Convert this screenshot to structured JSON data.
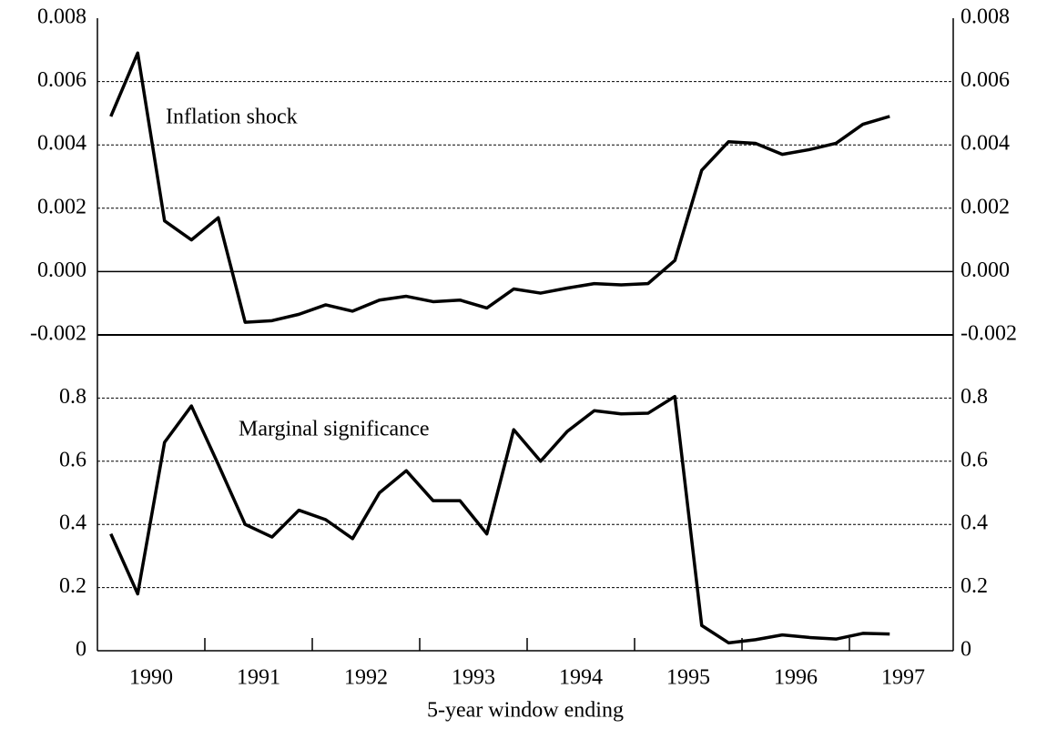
{
  "chart_data": [
    {
      "type": "line",
      "annotation": "Inflation shock",
      "ylim": [
        -0.002,
        0.008
      ],
      "yticks": [
        -0.002,
        {
          "value": 0,
          "label": "0.000"
        },
        0.002,
        0.004,
        0.006,
        0.008
      ],
      "series": [
        {
          "color": "#000000",
          "values": [
            0.0049,
            0.0069,
            0.0016,
            0.001,
            0.0017,
            -0.0016,
            -0.00155,
            -0.00135,
            -0.00105,
            -0.00125,
            -0.0009,
            -0.00078,
            -0.00095,
            -0.0009,
            -0.00115,
            -0.00055,
            -0.00068,
            -0.00052,
            -0.00038,
            -0.00042,
            -0.00038,
            0.00035,
            0.0032,
            0.0041,
            0.00405,
            0.0037,
            0.00385,
            0.00405,
            0.00465,
            0.0049
          ]
        }
      ]
    },
    {
      "type": "line",
      "annotation": "Marginal significance",
      "x_label": "5-year window ending",
      "categories": [
        "1990",
        null,
        null,
        null,
        "1991",
        null,
        null,
        null,
        "1992",
        null,
        null,
        null,
        "1993",
        null,
        null,
        null,
        "1994",
        null,
        null,
        null,
        "1995",
        null,
        null,
        null,
        "1996",
        null,
        null,
        null,
        "1997",
        null
      ],
      "ylim": [
        0,
        1
      ],
      "yticks": [
        0,
        0.2,
        0.4,
        0.6,
        0.8
      ],
      "series": [
        {
          "color": "#000000",
          "values": [
            0.37,
            0.18,
            0.66,
            0.775,
            0.59,
            0.4,
            0.36,
            0.445,
            0.415,
            0.355,
            0.5,
            0.57,
            0.475,
            0.475,
            0.37,
            0.7,
            0.6,
            0.695,
            0.76,
            0.75,
            0.752,
            0.805,
            0.08,
            0.025,
            0.035,
            0.05,
            0.042,
            0.037,
            0.055,
            0.053
          ]
        }
      ]
    }
  ]
}
